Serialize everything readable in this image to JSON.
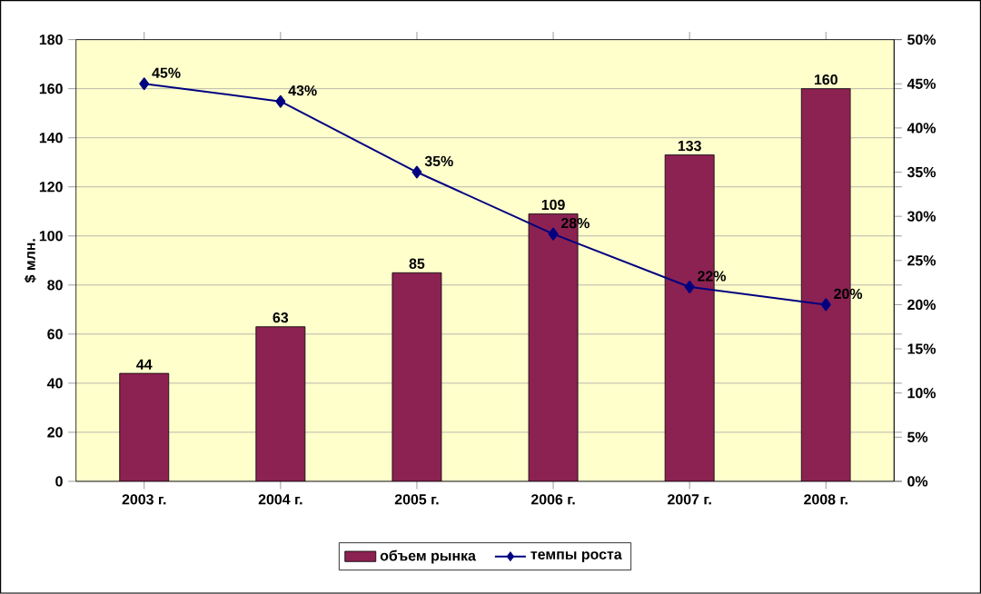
{
  "chart_data": {
    "type": "bar",
    "categories": [
      "2003 г.",
      "2004 г.",
      "2005 г.",
      "2006 г.",
      "2007 г.",
      "2008 г."
    ],
    "ylabel": "$ млн.",
    "ylim": [
      0,
      180
    ],
    "yticks": [
      0,
      20,
      40,
      60,
      80,
      100,
      120,
      140,
      160,
      180
    ],
    "y2lim": [
      0,
      50
    ],
    "y2ticks": [
      {
        "value": 0,
        "label": "0%"
      },
      {
        "value": 5,
        "label": "5%"
      },
      {
        "value": 10,
        "label": "10%"
      },
      {
        "value": 15,
        "label": "15%"
      },
      {
        "value": 20,
        "label": "20%"
      },
      {
        "value": 25,
        "label": "25%"
      },
      {
        "value": 30,
        "label": "30%"
      },
      {
        "value": 35,
        "label": "35%"
      },
      {
        "value": 40,
        "label": "40%"
      },
      {
        "value": 45,
        "label": "45%"
      },
      {
        "value": 50,
        "label": "50%"
      }
    ],
    "grid": "y",
    "legend": "bottom",
    "series": [
      {
        "name": "объем рынка",
        "color": "#8b2252",
        "values": [
          44,
          63,
          85,
          109,
          133,
          160
        ],
        "value_labels": [
          "44",
          "63",
          "85",
          "109",
          "133",
          "160"
        ]
      },
      {
        "name": "темпы роста",
        "type": "line",
        "axis": "y2",
        "marker": "diamond",
        "color": "#000080",
        "values": [
          45,
          43,
          35,
          28,
          22,
          20
        ],
        "value_labels": [
          "45%",
          "43%",
          "35%",
          "28%",
          "22%",
          "20%"
        ]
      }
    ]
  }
}
